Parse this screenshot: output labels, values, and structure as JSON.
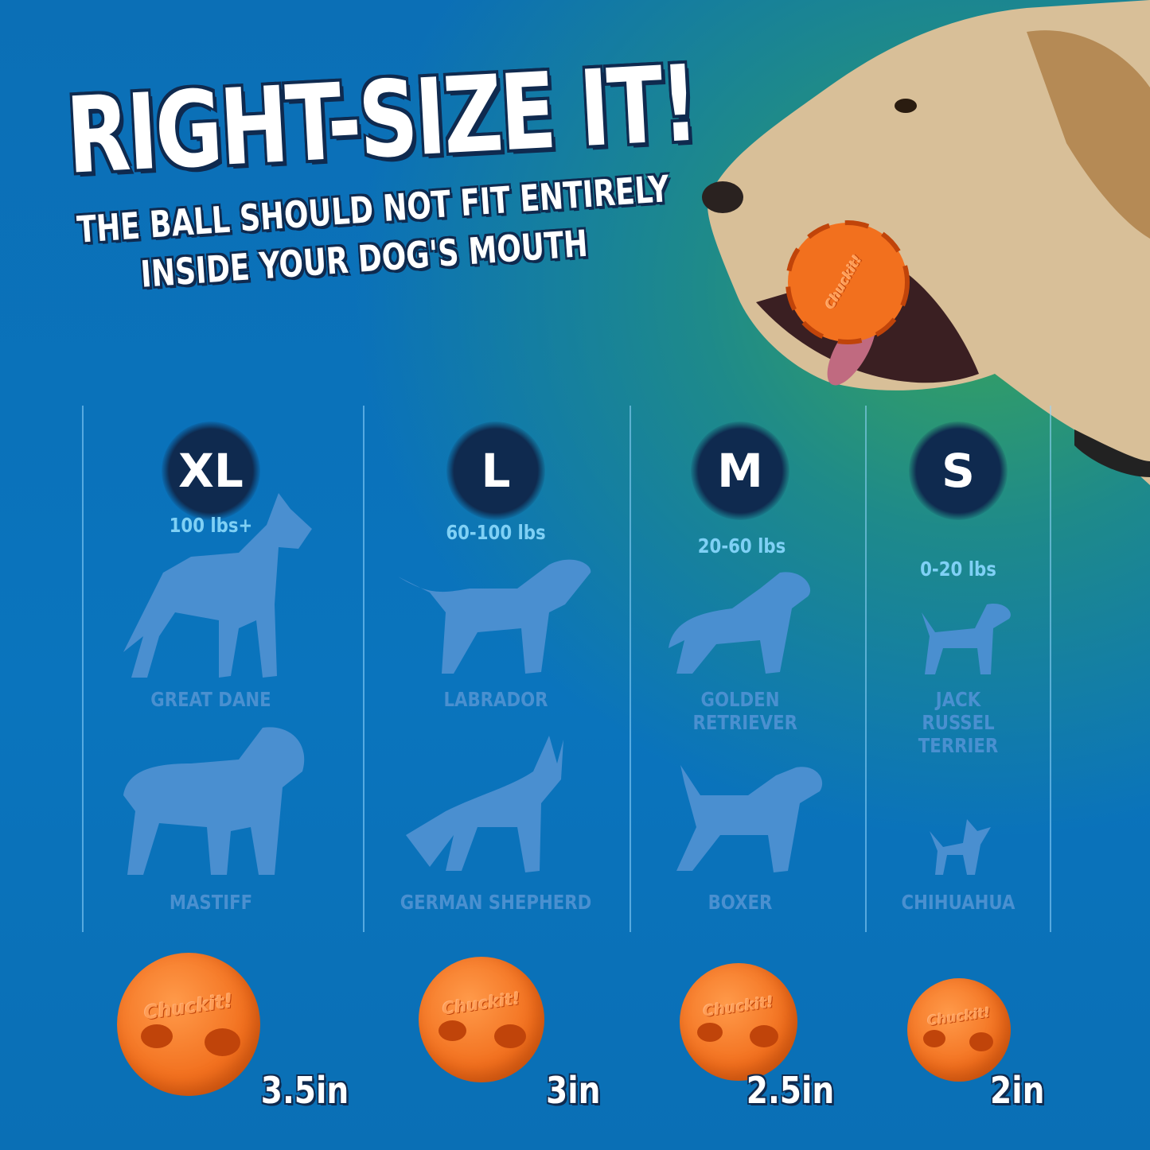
{
  "header": {
    "title": "RIGHT-SIZE IT!",
    "subtitle_line1": "THE BALL SHOULD NOT FIT ENTIRELY",
    "subtitle_line2": "INSIDE YOUR DOG'S MOUTH"
  },
  "brand": "Chuckit!",
  "colors": {
    "background": "#0a72b9",
    "badge": "#0f2a4f",
    "weight_text": "#7fd0f5",
    "silhouette": "#4a8fd0",
    "ball": "#f2701e"
  },
  "sizes": [
    {
      "label": "XL",
      "weight": "100 lbs+",
      "breeds": [
        "GREAT DANE",
        "MASTIFF"
      ],
      "ball_size": "3.5in"
    },
    {
      "label": "L",
      "weight": "60-100 lbs",
      "breeds": [
        "LABRADOR",
        "GERMAN SHEPHERD"
      ],
      "ball_size": "3in"
    },
    {
      "label": "M",
      "weight": "20-60 lbs",
      "breeds": [
        "GOLDEN RETRIEVER",
        "BOXER"
      ],
      "ball_size": "2.5in"
    },
    {
      "label": "S",
      "weight": "0-20 lbs",
      "breeds": [
        "JACK RUSSEL TERRIER",
        "CHIHUAHUA"
      ],
      "ball_size": "2in"
    }
  ]
}
